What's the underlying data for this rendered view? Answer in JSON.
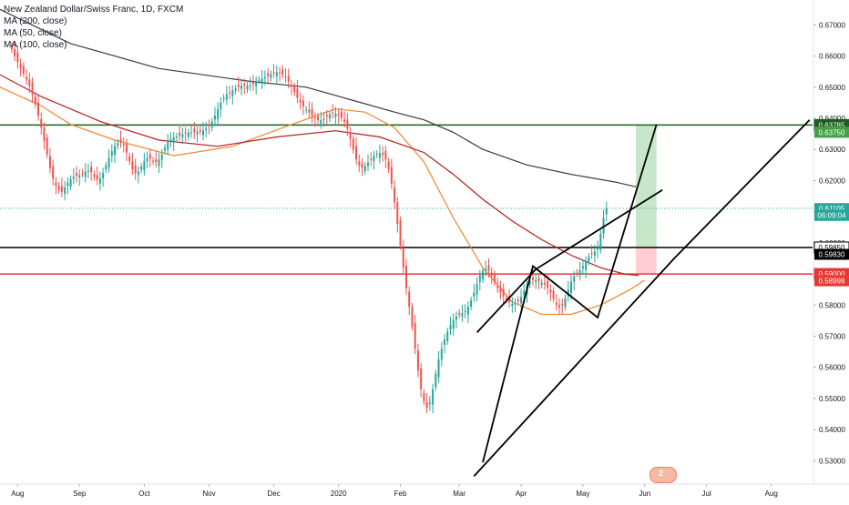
{
  "legend": {
    "symbol_line": "New Zealand Dollar/Swiss Franc, 1D, FXCM",
    "ma200": "MA (200, close)",
    "ma50": "MA (50, close)",
    "ma100": "MA (100, close)"
  },
  "chart_data": {
    "type": "candlestick",
    "symbol": "New Zealand Dollar/Swiss Franc",
    "timeframe": "1D",
    "source": "FXCM",
    "ylim": [
      0.5225,
      0.678
    ],
    "y_ticks": [
      "0.53000",
      "0.54000",
      "0.55000",
      "0.56000",
      "0.57000",
      "0.58000",
      "0.59000",
      "0.60000",
      "0.61000",
      "0.62000",
      "0.63000",
      "0.64000",
      "0.65000",
      "0.66000",
      "0.67000"
    ],
    "y_tick_values": [
      0.53,
      0.54,
      0.55,
      0.56,
      0.57,
      0.58,
      0.59,
      0.6,
      0.61,
      0.62,
      0.63,
      0.64,
      0.65,
      0.66,
      0.67
    ],
    "x_ticks": [
      "Aug",
      "Sep",
      "Oct",
      "Nov",
      "Dec",
      "2020",
      "Feb",
      "Mar",
      "Apr",
      "May",
      "Jun",
      "Jul",
      "Aug"
    ],
    "x_tick_index": [
      2,
      23,
      45,
      67,
      89,
      111,
      132,
      152,
      173,
      194,
      215,
      236,
      258
    ],
    "xlim": [
      -4,
      272
    ],
    "closes": [
      0.6622,
      0.66,
      0.6581,
      0.6562,
      0.6544,
      0.6525,
      0.6503,
      0.6477,
      0.6445,
      0.6409,
      0.637,
      0.6327,
      0.6284,
      0.624,
      0.6206,
      0.6184,
      0.617,
      0.6164,
      0.6177,
      0.6193,
      0.6205,
      0.6212,
      0.6216,
      0.6218,
      0.6223,
      0.6229,
      0.6232,
      0.6226,
      0.6212,
      0.6202,
      0.6207,
      0.6224,
      0.6249,
      0.6274,
      0.6295,
      0.6311,
      0.6321,
      0.6322,
      0.6312,
      0.629,
      0.6262,
      0.6236,
      0.6224,
      0.6229,
      0.6245,
      0.6262,
      0.6272,
      0.627,
      0.6262,
      0.6259,
      0.6267,
      0.6284,
      0.6305,
      0.6323,
      0.6334,
      0.6339,
      0.6342,
      0.6345,
      0.6349,
      0.6352,
      0.6354,
      0.6355,
      0.6356,
      0.6357,
      0.6358,
      0.6361,
      0.6367,
      0.6376,
      0.639,
      0.6409,
      0.643,
      0.645,
      0.6466,
      0.6477,
      0.6483,
      0.6489,
      0.6495,
      0.6501,
      0.6504,
      0.6505,
      0.6505,
      0.6506,
      0.651,
      0.6517,
      0.6523,
      0.6528,
      0.6532,
      0.6536,
      0.6542,
      0.6547,
      0.6548,
      0.6546,
      0.654,
      0.6531,
      0.6518,
      0.6502,
      0.6484,
      0.6466,
      0.6451,
      0.6438,
      0.6428,
      0.6418,
      0.6408,
      0.64,
      0.6395,
      0.6394,
      0.6398,
      0.6406,
      0.6413,
      0.6416,
      0.6415,
      0.641,
      0.6402,
      0.6389,
      0.6366,
      0.6334,
      0.6299,
      0.6268,
      0.6249,
      0.6242,
      0.6247,
      0.6257,
      0.6268,
      0.6278,
      0.6285,
      0.6288,
      0.6283,
      0.6267,
      0.6237,
      0.619,
      0.613,
      0.606,
      0.599,
      0.592,
      0.5855,
      0.5795,
      0.573,
      0.566,
      0.559,
      0.553,
      0.549,
      0.547,
      0.5486,
      0.553,
      0.558,
      0.5625,
      0.566,
      0.569,
      0.5715,
      0.5736,
      0.5752,
      0.5763,
      0.5769,
      0.5774,
      0.5781,
      0.5795,
      0.5815,
      0.584,
      0.5868,
      0.5895,
      0.591,
      0.5916,
      0.591,
      0.5894,
      0.5874,
      0.5856,
      0.584,
      0.5828,
      0.5818,
      0.5809,
      0.5804,
      0.5805,
      0.5812,
      0.5826,
      0.5846,
      0.5866,
      0.5877,
      0.588,
      0.588,
      0.5877,
      0.5872,
      0.5866,
      0.5856,
      0.584,
      0.582,
      0.58,
      0.5792,
      0.58,
      0.5822,
      0.585,
      0.5875,
      0.5892,
      0.5902,
      0.5912,
      0.5925,
      0.594,
      0.5955,
      0.5965,
      0.5972,
      0.599,
      0.603,
      0.608,
      0.611
    ],
    "series": [
      {
        "name": "MA (200, close)",
        "color": "#3c3c3c",
        "points": [
          [
            -4,
            0.675
          ],
          [
            20,
            0.664
          ],
          [
            50,
            0.656
          ],
          [
            80,
            0.652
          ],
          [
            100,
            0.65
          ],
          [
            115,
            0.646
          ],
          [
            130,
            0.642
          ],
          [
            140,
            0.6395
          ],
          [
            150,
            0.6355
          ],
          [
            160,
            0.63
          ],
          [
            175,
            0.625
          ],
          [
            190,
            0.622
          ],
          [
            205,
            0.6195
          ],
          [
            212,
            0.618
          ]
        ]
      },
      {
        "name": "MA (50, close)",
        "color": "#f0862f",
        "points": [
          [
            -4,
            0.65
          ],
          [
            10,
            0.644
          ],
          [
            20,
            0.638
          ],
          [
            35,
            0.633
          ],
          [
            55,
            0.628
          ],
          [
            75,
            0.631
          ],
          [
            95,
            0.638
          ],
          [
            110,
            0.643
          ],
          [
            120,
            0.642
          ],
          [
            130,
            0.637
          ],
          [
            140,
            0.626
          ],
          [
            150,
            0.608
          ],
          [
            160,
            0.592
          ],
          [
            170,
            0.581
          ],
          [
            180,
            0.577
          ],
          [
            190,
            0.577
          ],
          [
            200,
            0.58
          ],
          [
            210,
            0.585
          ],
          [
            215,
            0.588
          ]
        ]
      },
      {
        "name": "MA (100, close)",
        "color": "#b71c1c",
        "points": [
          [
            -4,
            0.654
          ],
          [
            10,
            0.647
          ],
          [
            30,
            0.639
          ],
          [
            50,
            0.633
          ],
          [
            70,
            0.631
          ],
          [
            90,
            0.634
          ],
          [
            110,
            0.636
          ],
          [
            125,
            0.634
          ],
          [
            140,
            0.629
          ],
          [
            150,
            0.622
          ],
          [
            160,
            0.614
          ],
          [
            170,
            0.607
          ],
          [
            180,
            0.601
          ],
          [
            190,
            0.596
          ],
          [
            200,
            0.592
          ],
          [
            208,
            0.59
          ],
          [
            213,
            0.5895
          ]
        ]
      }
    ],
    "h_levels": [
      {
        "value": 0.63785,
        "color": "#1b5e20",
        "label": "0.63785",
        "label_bg": "#1b5e20",
        "label_color": "#ffffff"
      },
      {
        "value": 0.5985,
        "color": "#000000",
        "label": "0.59850",
        "label_bg": "#ffffff",
        "label_color": "#000000"
      },
      {
        "value": 0.59,
        "color": "#e53935",
        "label": "0.59000",
        "label_bg": "#e53935",
        "label_color": "#ffffff"
      }
    ],
    "price_tags": [
      {
        "label": "0.63750",
        "value": 0.6355,
        "bg": "#43a047",
        "color": "#ffffff"
      },
      {
        "label": "0.61105",
        "value": 0.611,
        "bg": "#26a69a",
        "color": "#ffffff"
      },
      {
        "label": "06:09:04",
        "value": 0.6088,
        "bg": "#26a69a",
        "color": "#ffffff"
      },
      {
        "label": "0.59830",
        "value": 0.5963,
        "bg": "#000000",
        "color": "#ffffff"
      },
      {
        "label": "0.58998",
        "value": 0.5878,
        "bg": "#e53935",
        "color": "#ffffff"
      }
    ],
    "current_price_line": {
      "value": 0.61105,
      "color": "#26a69a"
    },
    "trend_lines": [
      [
        [
          157,
          0.525
        ],
        [
          225,
          0.595
        ],
        [
          271,
          0.6395
        ]
      ],
      [
        [
          158,
          0.5712
        ],
        [
          178,
          0.5915
        ],
        [
          221,
          0.617
        ]
      ],
      [
        [
          160,
          0.5295
        ],
        [
          177,
          0.5925
        ],
        [
          199,
          0.576
        ],
        [
          219,
          0.638
        ]
      ]
    ],
    "position": {
      "x_from": 212,
      "x_to": 219,
      "entry": 0.5985,
      "target": 0.63785,
      "stop": 0.59,
      "profit_color": "#c8e6c9",
      "loss_color": "#ffcdd2"
    },
    "badge": "2"
  }
}
